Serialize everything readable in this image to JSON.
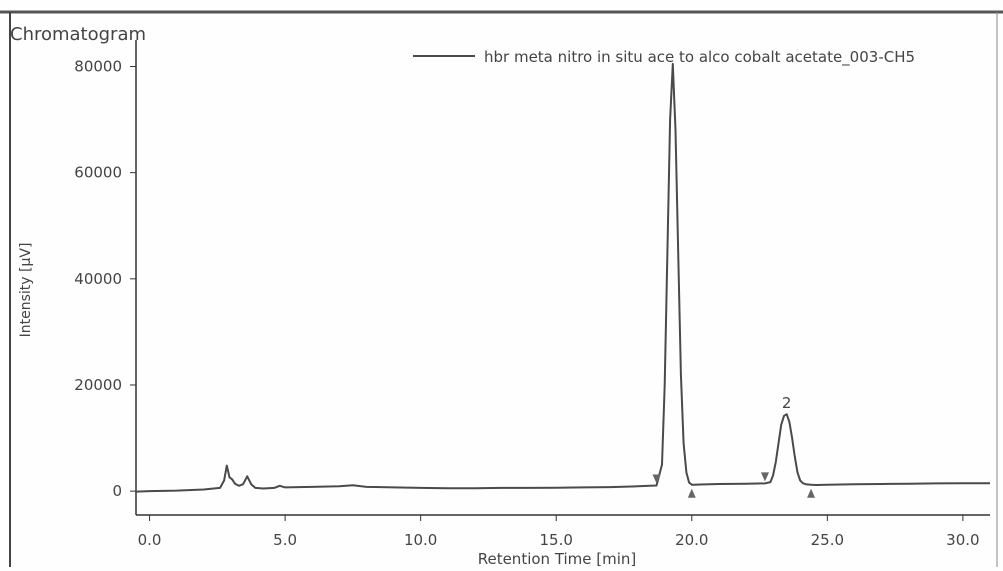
{
  "chart_data": {
    "type": "line",
    "title": "Chromatogram",
    "xlabel": "Retention Time [min]",
    "ylabel": "Intensity [µV]",
    "xlim": [
      -0.5,
      31
    ],
    "ylim": [
      -4500,
      85000
    ],
    "x_ticks": [
      0,
      5,
      10,
      15,
      20,
      25,
      30
    ],
    "x_tick_labels": [
      "0.0",
      "5.0",
      "10.0",
      "15.0",
      "20.0",
      "25.0",
      "30.0"
    ],
    "y_ticks": [
      0,
      20000,
      40000,
      60000,
      80000
    ],
    "y_tick_labels": [
      "0",
      "20000",
      "40000",
      "60000",
      "80000"
    ],
    "grid": false,
    "legend_position": "top-right",
    "series": [
      {
        "name": "hbr meta nitro in situ ace to alco cobalt acetate_003-CH5",
        "color": "#4a4a4a",
        "x": [
          -0.5,
          0.0,
          1.0,
          2.0,
          2.6,
          2.75,
          2.85,
          2.95,
          3.05,
          3.15,
          3.3,
          3.45,
          3.6,
          3.75,
          3.9,
          4.2,
          4.6,
          4.8,
          5.0,
          6.0,
          7.0,
          7.5,
          8.0,
          9.0,
          10.0,
          11.0,
          12.0,
          13.0,
          14.0,
          15.0,
          16.0,
          17.0,
          18.0,
          18.7,
          18.9,
          19.0,
          19.1,
          19.2,
          19.3,
          19.4,
          19.5,
          19.6,
          19.7,
          19.8,
          19.9,
          20.0,
          20.1,
          20.3,
          21.0,
          22.0,
          22.7,
          22.9,
          23.0,
          23.1,
          23.2,
          23.3,
          23.4,
          23.5,
          23.6,
          23.7,
          23.8,
          23.9,
          24.0,
          24.1,
          24.2,
          24.4,
          24.6,
          25.0,
          26.0,
          27.0,
          28.0,
          29.0,
          30.0,
          31.0
        ],
        "y": [
          -100,
          0,
          100,
          300,
          600,
          2000,
          4800,
          2600,
          2200,
          1400,
          1000,
          1300,
          2800,
          1300,
          600,
          500,
          600,
          1000,
          700,
          800,
          900,
          1100,
          800,
          700,
          600,
          550,
          550,
          600,
          600,
          650,
          700,
          750,
          900,
          1050,
          5000,
          20000,
          45000,
          70000,
          80500,
          68000,
          45000,
          22000,
          9000,
          3500,
          1600,
          1200,
          1200,
          1250,
          1350,
          1400,
          1450,
          1700,
          3000,
          5500,
          9000,
          12500,
          14200,
          14500,
          13000,
          10000,
          6500,
          3500,
          2000,
          1500,
          1300,
          1200,
          1150,
          1200,
          1300,
          1350,
          1400,
          1450,
          1500,
          1500
        ]
      },
      {
        "name": "peak-markers",
        "start_markers": [
          18.7,
          22.7
        ],
        "end_markers": [
          20.0,
          24.4
        ]
      }
    ],
    "annotations": [
      {
        "text": "2",
        "x": 23.5,
        "y": 14500
      }
    ]
  }
}
